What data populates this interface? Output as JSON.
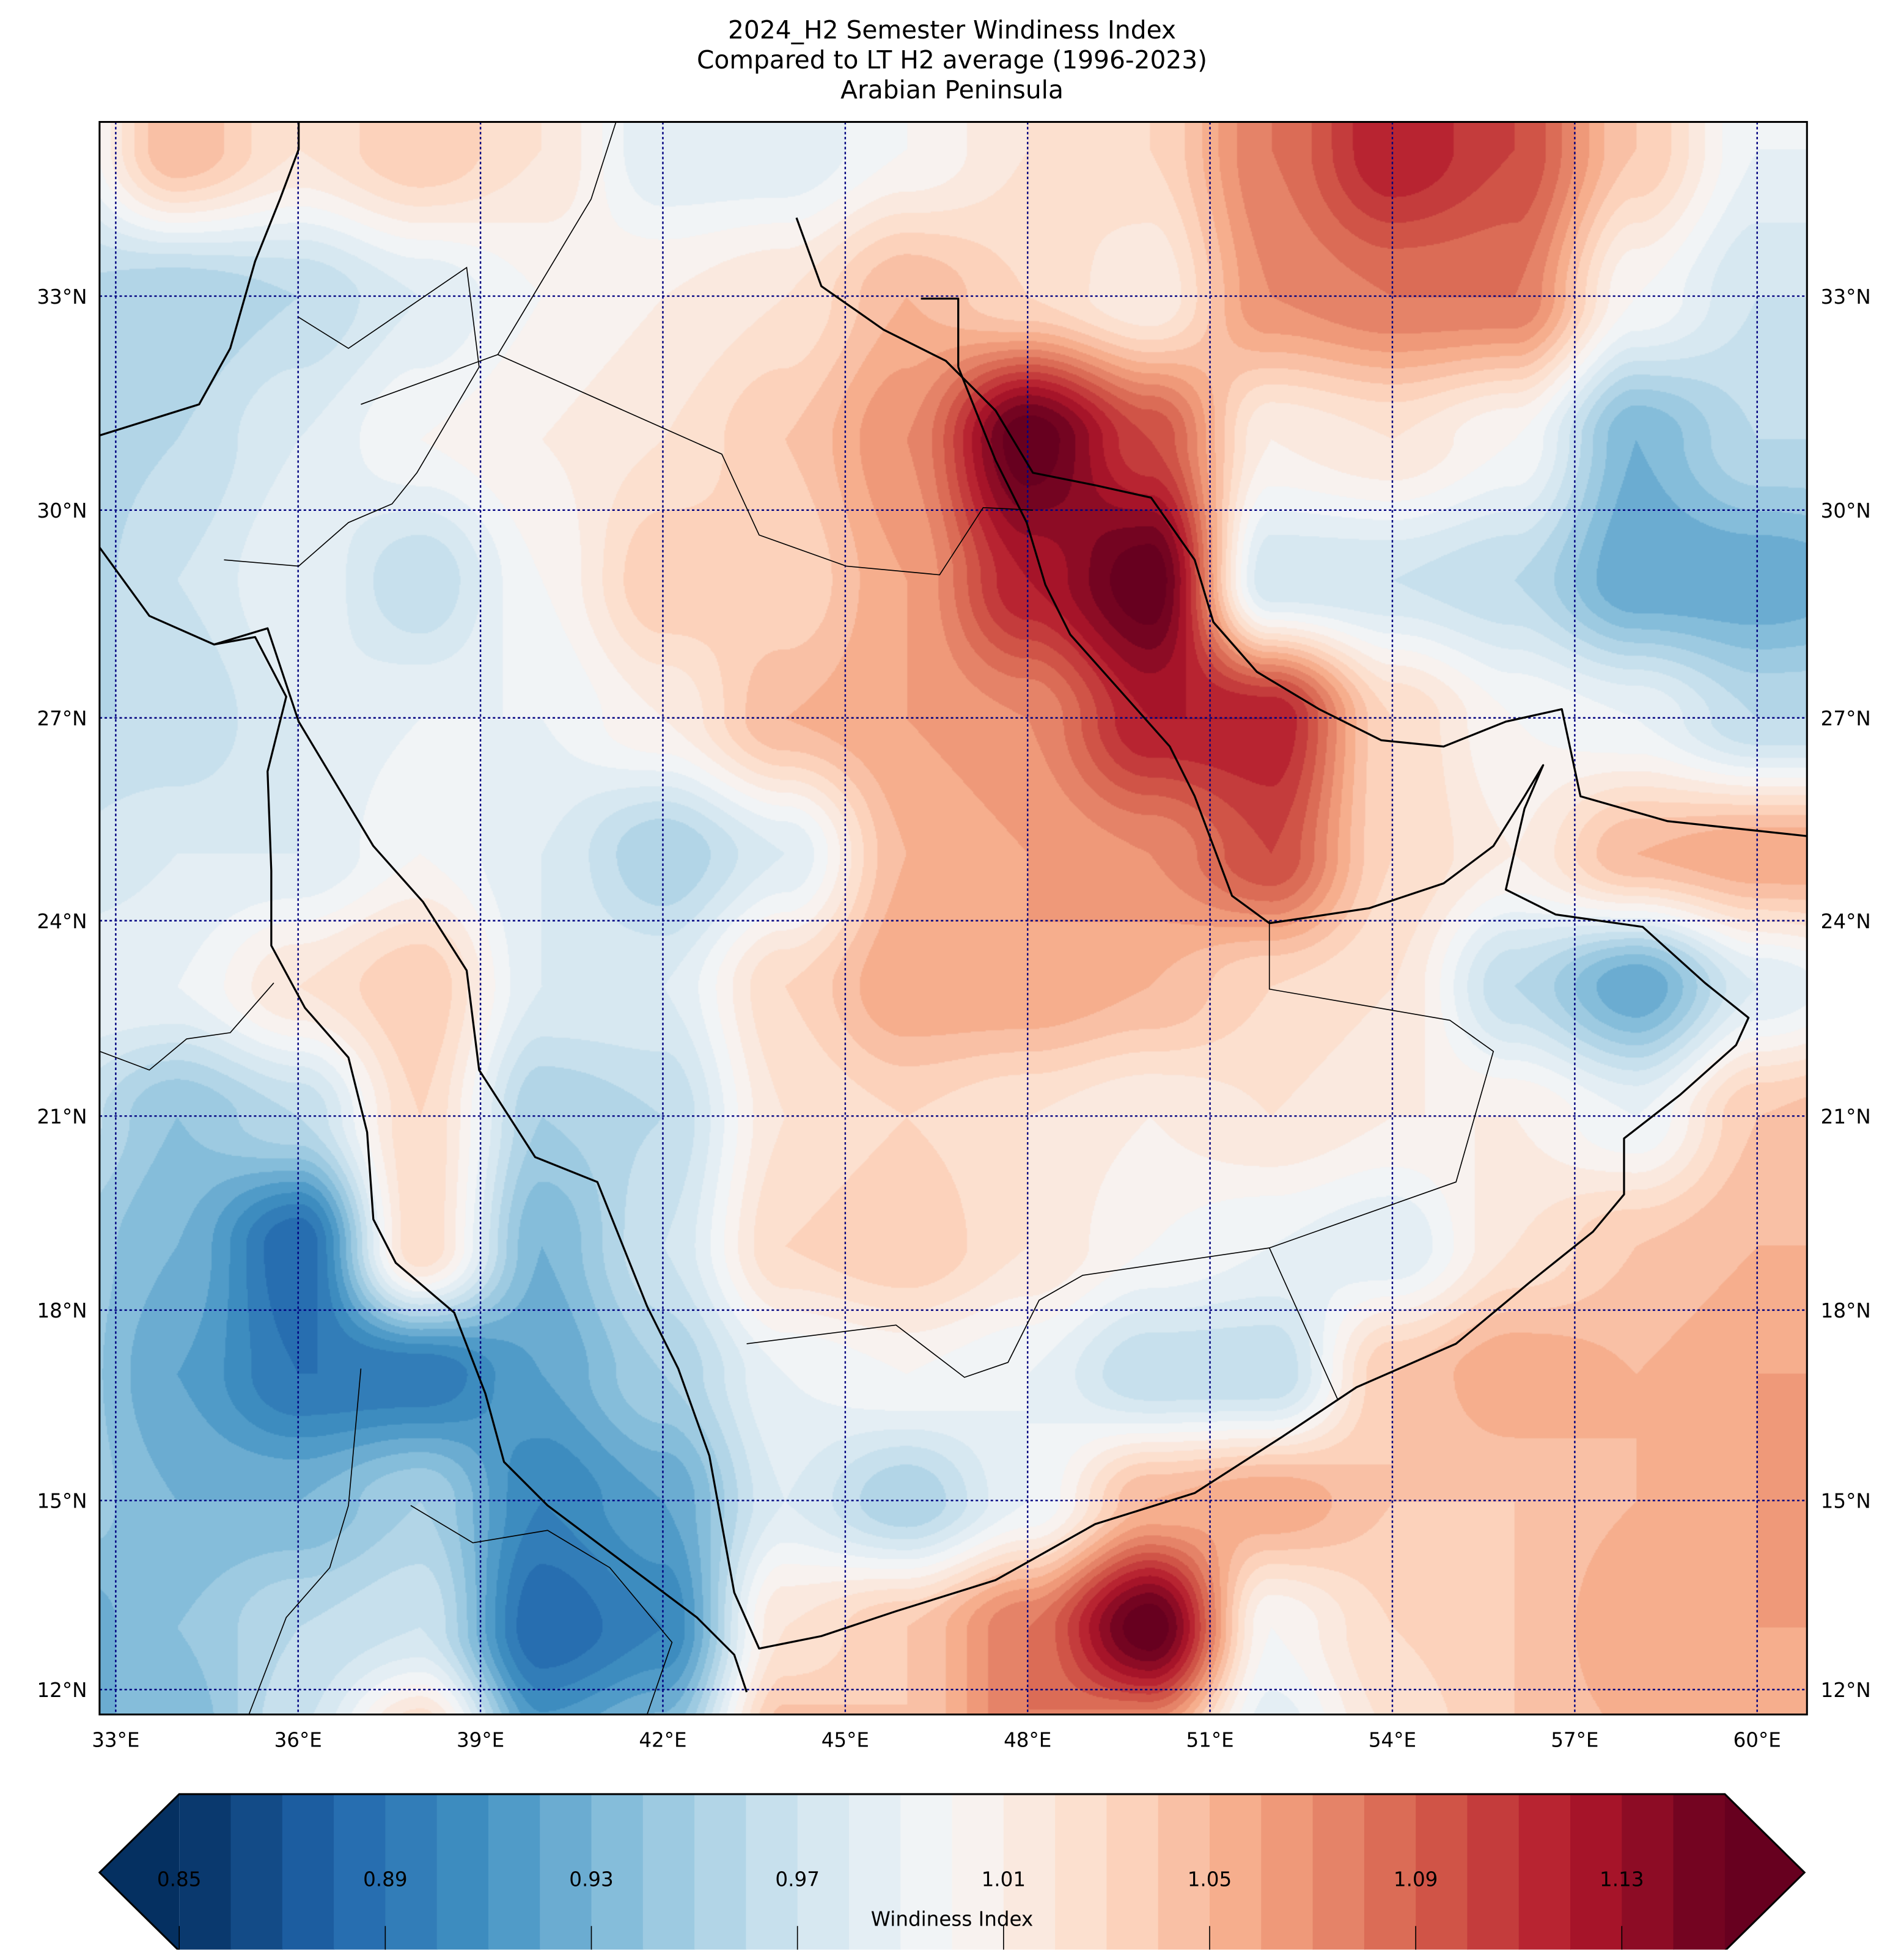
{
  "title": {
    "line1": "2024_H2 Semester Windiness Index",
    "line2": "Compared to LT H2 average (1996-2023)",
    "line3": "Arabian Peninsula"
  },
  "axes": {
    "lon_labels": [
      "33°E",
      "36°E",
      "39°E",
      "42°E",
      "45°E",
      "48°E",
      "51°E",
      "54°E",
      "57°E",
      "60°E"
    ],
    "lat_labels": [
      "33°N",
      "30°N",
      "27°N",
      "24°N",
      "21°N",
      "18°N",
      "15°N",
      "12°N"
    ],
    "gridline_color": "#000080"
  },
  "colorbar": {
    "label": "Windiness Index",
    "ticks": [
      "0.85",
      "0.89",
      "0.93",
      "0.97",
      "1.01",
      "1.05",
      "1.09",
      "1.13"
    ],
    "min": 0.85,
    "max": 1.15,
    "step": 0.01,
    "extend": "both",
    "colormap": [
      "#053061",
      "#2166ac",
      "#4393c3",
      "#92c5de",
      "#d1e5f0",
      "#f7f7f7",
      "#fddbc7",
      "#f4a582",
      "#d6604d",
      "#b2182b",
      "#67001f"
    ]
  },
  "chart_data": {
    "type": "heatmap",
    "title": "2024_H2 Semester Windiness Index",
    "xlabel": "",
    "ylabel": "",
    "lon_range": [
      32.7,
      60.8
    ],
    "lat_range": [
      11.6,
      35.4
    ],
    "grid_lons": [
      32,
      34,
      36,
      38,
      40,
      42,
      44,
      46,
      48,
      50,
      52,
      54,
      56,
      58,
      60,
      62
    ],
    "grid_lats": [
      35,
      33,
      31,
      29,
      27,
      25,
      23,
      21,
      19,
      17,
      15,
      13,
      11
    ],
    "values": [
      [
        0.98,
        1.05,
        1.02,
        1.04,
        1.02,
        0.98,
        0.98,
        1.0,
        1.02,
        1.03,
        1.08,
        1.12,
        1.1,
        1.04,
        0.99,
        0.99
      ],
      [
        0.96,
        0.95,
        0.96,
        0.98,
        1.0,
        1.01,
        1.02,
        1.05,
        1.03,
        1.01,
        1.07,
        1.08,
        1.08,
        1.0,
        0.97,
        0.97
      ],
      [
        0.95,
        0.96,
        0.98,
        1.0,
        1.01,
        1.02,
        1.04,
        1.07,
        1.16,
        1.1,
        1.01,
        1.02,
        1.0,
        0.93,
        0.96,
        0.96
      ],
      [
        0.95,
        0.97,
        0.99,
        0.96,
        1.0,
        1.04,
        1.03,
        1.06,
        1.12,
        1.16,
        0.97,
        0.97,
        0.96,
        0.92,
        0.92,
        0.93
      ],
      [
        0.96,
        0.96,
        0.98,
        0.99,
        0.99,
        1.01,
        1.05,
        1.06,
        1.07,
        1.12,
        1.12,
        1.03,
        1.0,
        0.99,
        0.96,
        0.96
      ],
      [
        0.97,
        0.98,
        0.98,
        1.0,
        0.98,
        0.95,
        0.98,
        1.05,
        1.06,
        1.07,
        1.1,
        1.03,
        1.01,
        1.05,
        1.06,
        1.06
      ],
      [
        0.99,
        0.99,
        1.02,
        1.04,
        0.98,
        0.98,
        1.03,
        1.06,
        1.06,
        1.05,
        1.03,
        1.02,
        0.96,
        0.92,
        0.98,
        1.0
      ],
      [
        0.97,
        0.94,
        0.96,
        1.03,
        0.95,
        0.96,
        1.02,
        1.03,
        1.02,
        1.01,
        1.02,
        1.01,
        1.01,
        0.99,
        1.04,
        1.05
      ],
      [
        0.95,
        0.93,
        0.88,
        1.03,
        0.93,
        0.97,
        1.03,
        1.04,
        1.02,
        1.0,
        0.99,
        0.98,
        1.02,
        1.04,
        1.05,
        1.05
      ],
      [
        0.95,
        0.92,
        0.89,
        0.89,
        0.92,
        0.95,
        0.99,
        1.0,
        0.99,
        0.96,
        0.96,
        1.04,
        1.06,
        1.05,
        1.06,
        1.06
      ],
      [
        0.95,
        0.93,
        0.93,
        0.95,
        0.9,
        0.92,
        0.98,
        0.95,
        0.99,
        1.05,
        1.06,
        1.04,
        1.04,
        1.05,
        1.06,
        1.06
      ],
      [
        0.92,
        0.94,
        0.96,
        0.97,
        0.88,
        0.9,
        1.02,
        1.04,
        1.08,
        1.16,
        1.0,
        1.03,
        1.04,
        1.06,
        1.06,
        1.06
      ],
      [
        0.93,
        0.93,
        0.97,
        1.04,
        0.92,
        0.94,
        1.05,
        1.04,
        1.08,
        1.05,
        0.98,
        1.02,
        1.04,
        1.05,
        1.05,
        1.05
      ]
    ]
  }
}
